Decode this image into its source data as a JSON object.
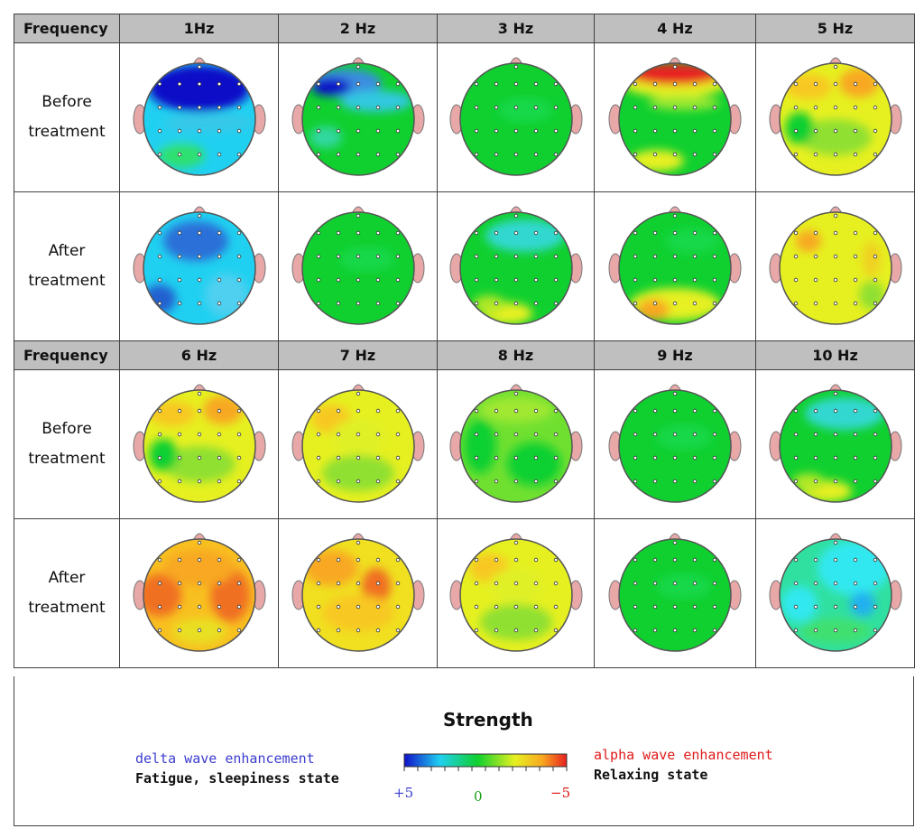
{
  "header": {
    "row_label": "Frequency",
    "frequencies_top": [
      "1Hz",
      "2 Hz",
      "3 Hz",
      "4 Hz",
      "5 Hz"
    ],
    "frequencies_bottom": [
      "6 Hz",
      "7 Hz",
      "8 Hz",
      "9 Hz",
      "10 Hz"
    ]
  },
  "rows": {
    "before": "Before treatment",
    "after": "After treatment"
  },
  "maps": {
    "top_before": [
      "blue-frontal",
      "blue-frontal-light",
      "green",
      "red-frontal",
      "yellow-orange"
    ],
    "top_after": [
      "blue-mixed",
      "green",
      "green-cyan",
      "green-yellow",
      "yellow"
    ],
    "bottom_before": [
      "yellow-orange",
      "yellow-green",
      "green-yellow",
      "green",
      "green-cyan"
    ],
    "bottom_after": [
      "orange",
      "orange-yellow",
      "yellow-green",
      "green",
      "cyan"
    ]
  },
  "legend": {
    "title": "Strength",
    "left_line1": "delta wave enhancement",
    "left_line2": "Fatigue, sleepiness state",
    "right_line1": "alpha wave enhancement",
    "right_line2": "Relaxing state",
    "tick_plus": "+5",
    "tick_zero": "0",
    "tick_minus": "−5",
    "colors": {
      "blue": "#1010c8",
      "cyan": "#20d0f0",
      "green": "#10d030",
      "yellow": "#e6f020",
      "orange": "#f8a820",
      "red": "#e82020"
    }
  }
}
